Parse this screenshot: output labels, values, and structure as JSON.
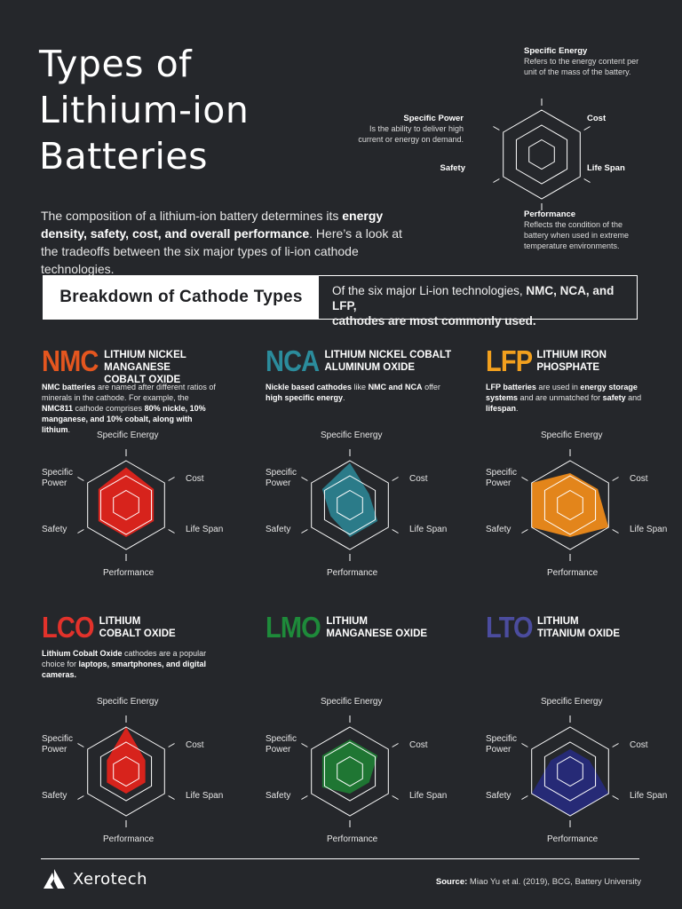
{
  "title": {
    "line1": "Types of",
    "line2": "Lithium-ion",
    "line3": "Batteries"
  },
  "intro": {
    "p1": "The composition of a lithium-ion battery determines its ",
    "b1": "energy density, safety, cost, and overall performance",
    "p2": ". Here’s a look at the tradeoffs between the six major types of li-ion cathode technologies."
  },
  "legend": {
    "specific_energy": {
      "label": "Specific Energy",
      "desc": "Refers to the energy content per unit of the mass of the battery."
    },
    "specific_power": {
      "label": "Specific Power",
      "desc": "Is the ability to deliver high current or energy on demand."
    },
    "cost": {
      "label": "Cost"
    },
    "life_span": {
      "label": "Life Span"
    },
    "safety": {
      "label": "Safety"
    },
    "performance": {
      "label": "Performance",
      "desc": "Reflects the condition of the battery when used in extreme temperature environments."
    }
  },
  "band": {
    "title": "Breakdown of Cathode Types",
    "note_prefix": "Of the six major Li-ion technologies, ",
    "note_bold1": "NMC, NCA, and LFP",
    "note_bold2": "cathodes are most commonly used."
  },
  "axes": {
    "specific_energy": "Specific Energy",
    "cost": "Cost",
    "life_span": "Life Span",
    "performance": "Performance",
    "safety": "Safety",
    "specific_power_1": "Specific",
    "specific_power_2": "Power"
  },
  "chemistries": [
    {
      "code": "NMC",
      "color": "#e4561f",
      "fill": "#e0231b",
      "name1": "Lithium Nickel Manganese",
      "name2": "Cobalt Oxide",
      "desc": [
        {
          "t": "NMC batteries",
          "b": true
        },
        {
          "t": " are named after different ratios of minerals in the cathode. For example, the ",
          "b": false
        },
        {
          "t": "NMC811",
          "b": true
        },
        {
          "t": " cathode comprises ",
          "b": false
        },
        {
          "t": "80% nickle, 10% manganese, and 10% cobalt, along with lithium",
          "b": true
        },
        {
          "t": ".",
          "b": false
        }
      ],
      "values": {
        "specific_energy": 0.85,
        "cost": 0.72,
        "life_span": 0.72,
        "performance": 0.72,
        "safety": 0.72,
        "specific_power": 0.72
      }
    },
    {
      "code": "NCA",
      "color": "#2b8c9c",
      "fill": "#2b7f8e",
      "name1": "Lithium Nickel Cobalt",
      "name2": "Aluminum Oxide",
      "desc": [
        {
          "t": "Nickle based cathodes",
          "b": true
        },
        {
          "t": " like ",
          "b": false
        },
        {
          "t": "NMC and NCA",
          "b": true
        },
        {
          "t": " offer ",
          "b": false
        },
        {
          "t": "high specific energy",
          "b": true
        },
        {
          "t": ".",
          "b": false
        }
      ],
      "values": {
        "specific_energy": 0.95,
        "cost": 0.5,
        "life_span": 0.72,
        "performance": 0.72,
        "safety": 0.5,
        "specific_power": 0.72
      }
    },
    {
      "code": "LFP",
      "color": "#f2a01e",
      "fill": "#ed8a1a",
      "name1": "Lithium Iron",
      "name2": "Phosphate",
      "desc": [
        {
          "t": "LFP batteries",
          "b": true
        },
        {
          "t": " are used in ",
          "b": false
        },
        {
          "t": "energy storage systems",
          "b": true
        },
        {
          "t": " and are unmatched for ",
          "b": false
        },
        {
          "t": "safety",
          "b": true
        },
        {
          "t": " and ",
          "b": false
        },
        {
          "t": "lifespan",
          "b": true
        },
        {
          "t": ".",
          "b": false
        }
      ],
      "values": {
        "specific_energy": 0.72,
        "cost": 0.72,
        "life_span": 1.0,
        "performance": 0.72,
        "safety": 1.0,
        "specific_power": 1.0
      }
    },
    {
      "code": "LCO",
      "color": "#e2322b",
      "fill": "#e0231b",
      "name1": "Lithium",
      "name2": "Cobalt Oxide",
      "desc": [
        {
          "t": "Lithium Cobalt Oxide",
          "b": true
        },
        {
          "t": " cathodes are a popular choice for ",
          "b": false
        },
        {
          "t": "laptops, smartphones, and digital cameras.",
          "b": true
        }
      ],
      "values": {
        "specific_energy": 1.0,
        "cost": 0.5,
        "life_span": 0.5,
        "performance": 0.5,
        "safety": 0.5,
        "specific_power": 0.5
      }
    },
    {
      "code": "LMO",
      "color": "#1e8a3a",
      "fill": "#1f7a34",
      "name1": "Lithium",
      "name2": "Manganese Oxide",
      "desc": [],
      "values": {
        "specific_energy": 0.72,
        "cost": 0.72,
        "life_span": 0.5,
        "performance": 0.5,
        "safety": 0.72,
        "specific_power": 0.72
      }
    },
    {
      "code": "LTO",
      "color": "#4b4c9e",
      "fill": "#262a7a",
      "name1": "Lithium",
      "name2": "Titanium Oxide",
      "desc": [],
      "values": {
        "specific_energy": 0.5,
        "cost": 0.5,
        "life_span": 1.0,
        "performance": 1.0,
        "safety": 1.0,
        "specific_power": 0.5
      }
    }
  ],
  "footer": {
    "brand": "Xerotech",
    "source_label": "Source:",
    "source_text": " Miao Yu et al. (2019), BCG, Battery University"
  }
}
